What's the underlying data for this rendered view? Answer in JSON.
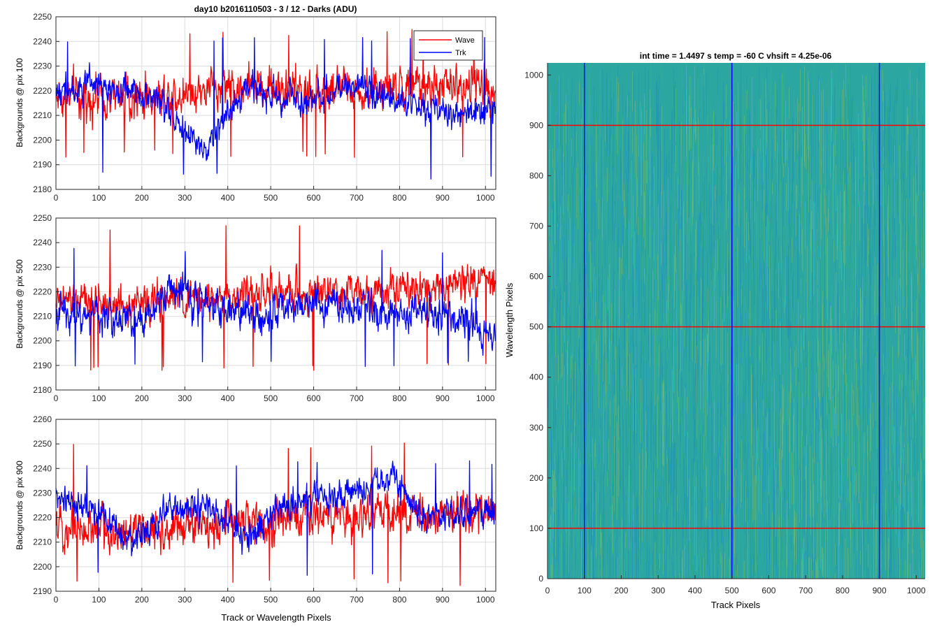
{
  "figure_title": "day10 b2016110503 - 3 / 12 - Darks (ADU)",
  "colors": {
    "wave": "#ff0000",
    "trk": "#0000ff",
    "grid": "#dcdcdc",
    "axis": "#262626"
  },
  "chart_data": [
    {
      "type": "line",
      "ylabel": "Backgrounds @ pix 100",
      "xlim": [
        0,
        1024
      ],
      "ylim": [
        2180,
        2250
      ],
      "xticks": [
        0,
        100,
        200,
        300,
        400,
        500,
        600,
        700,
        800,
        900,
        1000
      ],
      "yticks": [
        2180,
        2190,
        2200,
        2210,
        2220,
        2230,
        2240,
        2250
      ],
      "grid": true,
      "legend": {
        "position": "top-right",
        "entries": [
          "Wave",
          "Trk"
        ]
      },
      "series": [
        {
          "name": "Wave",
          "color": "#ff0000",
          "mean": 2219,
          "noise": 7,
          "trend": [
            [
              0,
              2218
            ],
            [
              200,
              2217
            ],
            [
              400,
              2222
            ],
            [
              600,
              2220
            ],
            [
              800,
              2221
            ],
            [
              1024,
              2222
            ]
          ],
          "min": 2193,
          "max": 2245
        },
        {
          "name": "Trk",
          "color": "#0000ff",
          "mean": 2219,
          "noise": 5,
          "trend": [
            [
              0,
              2220
            ],
            [
              100,
              2222
            ],
            [
              200,
              2220
            ],
            [
              250,
              2214
            ],
            [
              300,
              2205
            ],
            [
              350,
              2193
            ],
            [
              380,
              2205
            ],
            [
              450,
              2222
            ],
            [
              500,
              2218
            ],
            [
              600,
              2216
            ],
            [
              700,
              2222
            ],
            [
              800,
              2216
            ],
            [
              900,
              2210
            ],
            [
              1024,
              2213
            ]
          ],
          "min": 2184,
          "max": 2242
        }
      ]
    },
    {
      "type": "line",
      "ylabel": "Backgrounds @ pix 500",
      "xlim": [
        0,
        1024
      ],
      "ylim": [
        2180,
        2250
      ],
      "xticks": [
        0,
        100,
        200,
        300,
        400,
        500,
        600,
        700,
        800,
        900,
        1000
      ],
      "yticks": [
        2180,
        2190,
        2200,
        2210,
        2220,
        2230,
        2240,
        2250
      ],
      "grid": true,
      "series": [
        {
          "name": "Wave",
          "color": "#ff0000",
          "mean": 2218,
          "noise": 6,
          "trend": [
            [
              0,
              2216
            ],
            [
              200,
              2215
            ],
            [
              400,
              2218
            ],
            [
              600,
              2220
            ],
            [
              800,
              2222
            ],
            [
              1024,
              2224
            ]
          ],
          "min": 2188,
          "max": 2247
        },
        {
          "name": "Trk",
          "color": "#0000ff",
          "mean": 2213,
          "noise": 6,
          "trend": [
            [
              0,
              2212
            ],
            [
              200,
              2208
            ],
            [
              270,
              2222
            ],
            [
              400,
              2212
            ],
            [
              500,
              2210
            ],
            [
              600,
              2215
            ],
            [
              800,
              2212
            ],
            [
              950,
              2210
            ],
            [
              1024,
              2200
            ]
          ],
          "min": 2189,
          "max": 2238
        }
      ]
    },
    {
      "type": "line",
      "ylabel": "Backgrounds @ pix 900",
      "xlabel": "Track or Wavelength Pixels",
      "xlim": [
        0,
        1024
      ],
      "ylim": [
        2190,
        2260
      ],
      "xticks": [
        0,
        100,
        200,
        300,
        400,
        500,
        600,
        700,
        800,
        900,
        1000
      ],
      "yticks": [
        2190,
        2200,
        2210,
        2220,
        2230,
        2240,
        2250,
        2260
      ],
      "grid": true,
      "series": [
        {
          "name": "Wave",
          "color": "#ff0000",
          "mean": 2218,
          "noise": 7,
          "trend": [
            [
              0,
              2216
            ],
            [
              200,
              2214
            ],
            [
              400,
              2218
            ],
            [
              600,
              2220
            ],
            [
              800,
              2222
            ],
            [
              1024,
              2222
            ]
          ],
          "min": 2192,
          "max": 2251
        },
        {
          "name": "Trk",
          "color": "#0000ff",
          "mean": 2225,
          "noise": 5,
          "trend": [
            [
              0,
              2228
            ],
            [
              100,
              2222
            ],
            [
              180,
              2210
            ],
            [
              250,
              2222
            ],
            [
              350,
              2225
            ],
            [
              450,
              2210
            ],
            [
              500,
              2222
            ],
            [
              600,
              2228
            ],
            [
              700,
              2230
            ],
            [
              780,
              2236
            ],
            [
              850,
              2222
            ],
            [
              1024,
              2222
            ]
          ],
          "min": 2196,
          "max": 2244
        }
      ]
    },
    {
      "type": "heatmap",
      "title": "int time = 1.4497 s    temp = -60 C    vhsift = 4.25e-06",
      "xlabel": "Track Pixels",
      "ylabel": "Wavelength Pixels",
      "xlim": [
        0,
        1024
      ],
      "ylim": [
        0,
        1024
      ],
      "xticks": [
        0,
        100,
        200,
        300,
        400,
        500,
        600,
        700,
        800,
        900,
        1000
      ],
      "yticks": [
        0,
        100,
        200,
        300,
        400,
        500,
        600,
        700,
        800,
        900,
        1000
      ],
      "colormap": "parula",
      "base_color": "#2ba6a0",
      "vertical_lines": {
        "color": "#0000ff",
        "x": [
          100,
          500,
          900
        ]
      },
      "horizontal_lines": {
        "color": "#ff0000",
        "y": [
          100,
          500,
          900
        ]
      }
    }
  ]
}
